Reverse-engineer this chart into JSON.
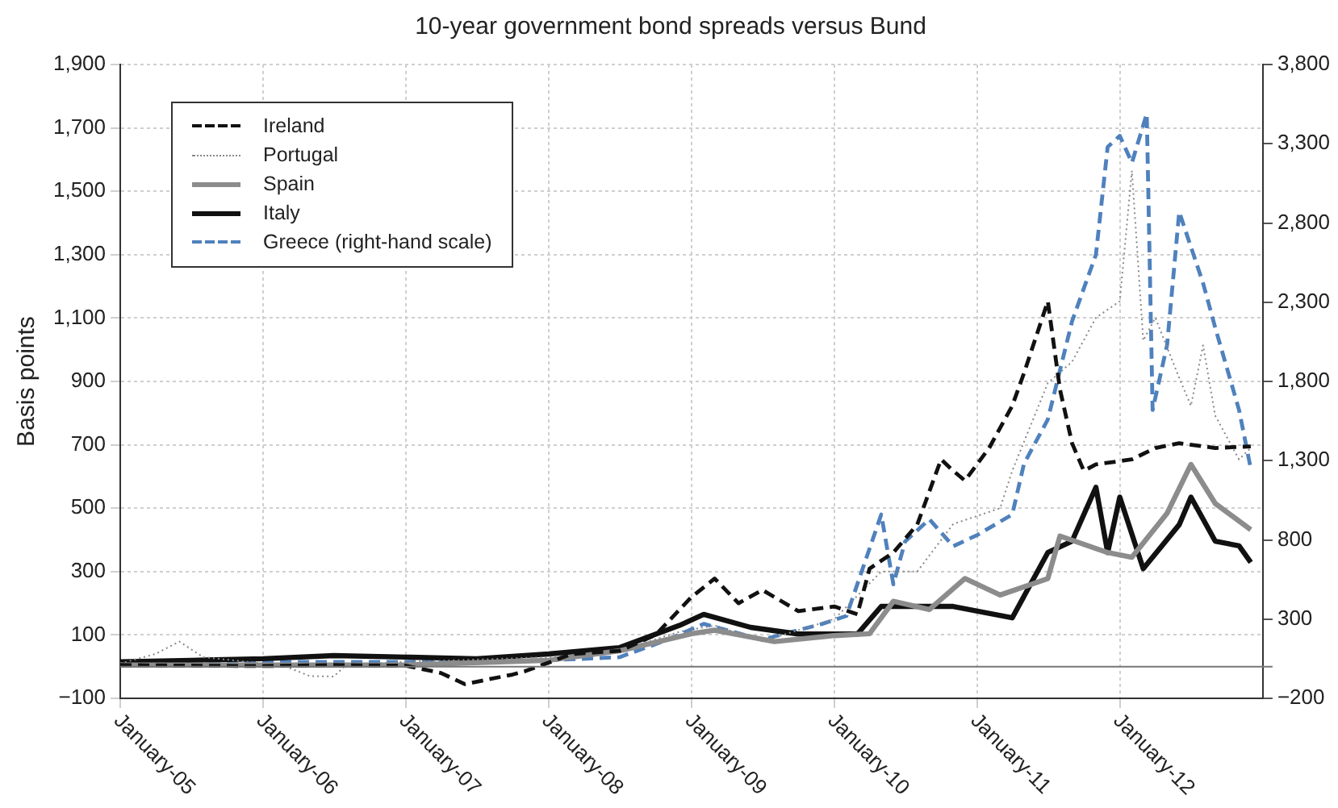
{
  "chart_data": {
    "type": "line",
    "title": "10-year government bond spreads versus Bund",
    "ylabel": "Basis points",
    "xlim": [
      "2005-01",
      "2013-01"
    ],
    "xticks": [
      {
        "value": "2005-01",
        "label": "January-05"
      },
      {
        "value": "2006-01",
        "label": "January-06"
      },
      {
        "value": "2007-01",
        "label": "January-07"
      },
      {
        "value": "2008-01",
        "label": "January-08"
      },
      {
        "value": "2009-01",
        "label": "January-09"
      },
      {
        "value": "2010-01",
        "label": "January-10"
      },
      {
        "value": "2011-01",
        "label": "January-11"
      },
      {
        "value": "2012-01",
        "label": "January-12"
      }
    ],
    "ylim": [
      -100,
      1900
    ],
    "yticks": [
      {
        "value": -100,
        "label": "−100"
      },
      100,
      300,
      500,
      700,
      900,
      {
        "value": 1100,
        "label": "1,100"
      },
      {
        "value": 1300,
        "label": "1,300"
      },
      {
        "value": 1500,
        "label": "1,500"
      },
      {
        "value": 1700,
        "label": "1,700"
      },
      {
        "value": 1900,
        "label": "1,900"
      }
    ],
    "y2lim": [
      -200,
      3800
    ],
    "y2ticks": [
      {
        "value": -200,
        "label": "−200"
      },
      300,
      800,
      {
        "value": 1300,
        "label": "1,300"
      },
      {
        "value": 1800,
        "label": "1,800"
      },
      {
        "value": 2300,
        "label": "2,300"
      },
      {
        "value": 2800,
        "label": "2,800"
      },
      {
        "value": 3300,
        "label": "3,300"
      },
      {
        "value": 3800,
        "label": "3,800"
      }
    ],
    "grid": true,
    "legend": "top left",
    "ref_lines": [
      {
        "axis": "y2",
        "value": 0,
        "color": "#777777"
      }
    ],
    "series": [
      {
        "name": "Ireland",
        "color": "#111111",
        "line_style": "dashed",
        "x": [
          "2005-01",
          "2005-07",
          "2006-01",
          "2006-07",
          "2007-01",
          "2007-04",
          "2007-06",
          "2007-08",
          "2007-10",
          "2007-11",
          "2008-03",
          "2008-07",
          "2008-10",
          "2009-01",
          "2009-03",
          "2009-05",
          "2009-07",
          "2009-10",
          "2010-01",
          "2010-03",
          "2010-04",
          "2010-06",
          "2010-08",
          "2010-10",
          "2010-11",
          "2010-12",
          "2011-02",
          "2011-04",
          "2011-05",
          "2011-07",
          "2011-08",
          "2011-09",
          "2011-10",
          "2011-11",
          "2012-02",
          "2012-04",
          "2012-06",
          "2012-09",
          "2012-12"
        ],
        "values": [
          5,
          3,
          2,
          5,
          3,
          -20,
          -55,
          -40,
          -25,
          -15,
          40,
          50,
          100,
          220,
          278,
          200,
          242,
          175,
          190,
          165,
          309,
          360,
          448,
          654,
          618,
          587,
          690,
          823,
          926,
          1153,
          875,
          705,
          618,
          638,
          654,
          690,
          705,
          690,
          695
        ]
      },
      {
        "name": "Portugal",
        "color": "#888888",
        "line_style": "dotted",
        "x": [
          "2005-01",
          "2005-04",
          "2005-06",
          "2005-08",
          "2006-01",
          "2006-03",
          "2006-05",
          "2006-07",
          "2006-08",
          "2007-01",
          "2008-01",
          "2008-07",
          "2008-12",
          "2009-03",
          "2009-07",
          "2010-01",
          "2010-05",
          "2010-08",
          "2010-11",
          "2011-03",
          "2011-04",
          "2011-07",
          "2011-09",
          "2011-11",
          "2012-01",
          "2012-02",
          "2012-03",
          "2012-04",
          "2012-06",
          "2012-07",
          "2012-08",
          "2012-09",
          "2012-11",
          "2012-12"
        ],
        "values": [
          10,
          40,
          79,
          30,
          10,
          0,
          -30,
          -31,
          5,
          15,
          30,
          50,
          110,
          130,
          80,
          150,
          300,
          300,
          450,
          500,
          618,
          895,
          962,
          1101,
          1153,
          1565,
          1029,
          1101,
          911,
          823,
          1014,
          792,
          654,
          690
        ]
      },
      {
        "name": "Spain",
        "color": "#8c8c8c",
        "line_style": "solid",
        "x": [
          "2005-01",
          "2006-01",
          "2007-01",
          "2008-01",
          "2008-07",
          "2009-01",
          "2009-03",
          "2009-08",
          "2010-01",
          "2010-04",
          "2010-06",
          "2010-09",
          "2010-12",
          "2011-03",
          "2011-07",
          "2011-08",
          "2011-12",
          "2012-02",
          "2012-05",
          "2012-07",
          "2012-09",
          "2012-12"
        ],
        "values": [
          5,
          5,
          5,
          20,
          50,
          104,
          115,
          79,
          98,
          104,
          206,
          180,
          278,
          226,
          278,
          412,
          360,
          345,
          484,
          638,
          515,
          432
        ]
      },
      {
        "name": "Italy",
        "color": "#111111",
        "line_style": "solid",
        "x": [
          "2005-01",
          "2005-07",
          "2006-01",
          "2006-07",
          "2007-01",
          "2007-07",
          "2008-01",
          "2008-07",
          "2008-12",
          "2009-02",
          "2009-06",
          "2009-10",
          "2010-03",
          "2010-05",
          "2010-11",
          "2011-04",
          "2011-07",
          "2011-09",
          "2011-11",
          "2011-12",
          "2012-01",
          "2012-03",
          "2012-06",
          "2012-07",
          "2012-09",
          "2012-11",
          "2012-12"
        ],
        "values": [
          15,
          20,
          25,
          35,
          30,
          25,
          40,
          60,
          130,
          165,
          124,
          103,
          103,
          190,
          190,
          154,
          360,
          396,
          566,
          360,
          535,
          309,
          448,
          535,
          396,
          381,
          329
        ]
      },
      {
        "name": "Greece (right-hand scale)",
        "color": "#4f81bd",
        "line_style": "dashed",
        "axis": "y2",
        "x": [
          "2005-01",
          "2006-01",
          "2007-01",
          "2008-01",
          "2008-07",
          "2008-11",
          "2009-02",
          "2009-07",
          "2009-12",
          "2010-02",
          "2010-05",
          "2010-06",
          "2010-07",
          "2010-09",
          "2010-11",
          "2011-01",
          "2011-04",
          "2011-05",
          "2011-07",
          "2011-09",
          "2011-11",
          "2011-12",
          "2012-01",
          "2012-02",
          "2012-03-10",
          "2012-03-25",
          "2012-05",
          "2012-06",
          "2012-08",
          "2012-09",
          "2012-11",
          "2012-12"
        ],
        "values": [
          30,
          30,
          30,
          40,
          60,
          170,
          270,
          170,
          270,
          320,
          960,
          520,
          790,
          930,
          760,
          830,
          960,
          1280,
          1560,
          2180,
          2600,
          3280,
          3350,
          3180,
          3490,
          1620,
          2030,
          2870,
          2420,
          2140,
          1620,
          1250
        ]
      }
    ]
  }
}
